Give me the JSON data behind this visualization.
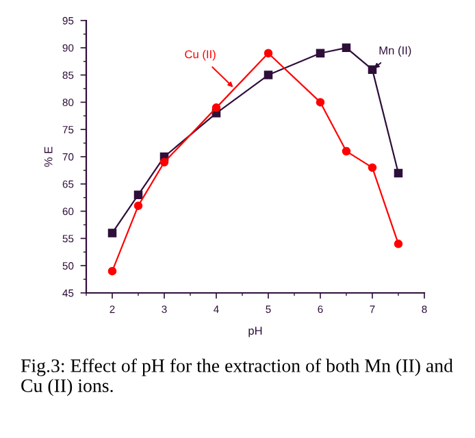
{
  "chart_data": {
    "type": "line",
    "xlabel": "pH",
    "ylabel": "% E",
    "series": [
      {
        "name": "Mn (II)",
        "color": "#2e0f3a",
        "marker": "square",
        "x": [
          2,
          2.5,
          3,
          4,
          5,
          6,
          6.5,
          7,
          7.5
        ],
        "values": [
          56,
          63,
          70,
          78,
          85,
          89,
          90,
          86,
          67
        ]
      },
      {
        "name": "Cu (II)",
        "color": "#ff0000",
        "marker": "circle",
        "x": [
          2,
          2.5,
          3,
          4,
          5,
          6,
          6.5,
          7,
          7.5
        ],
        "values": [
          49,
          61,
          69,
          79,
          89,
          80,
          71,
          68,
          54
        ]
      }
    ],
    "xlim": [
      1.5,
      8
    ],
    "xticks": [
      2,
      3,
      4,
      5,
      6,
      7,
      8
    ],
    "ylim": [
      45,
      95
    ],
    "yticks": [
      45,
      50,
      55,
      60,
      65,
      70,
      75,
      80,
      85,
      90,
      95
    ],
    "grid": false,
    "legend": false,
    "line_style": "solid",
    "annotations": [
      "Fig.3: Effect of pH for the extraction of both Mn (II) and Cu (II) ions."
    ]
  }
}
